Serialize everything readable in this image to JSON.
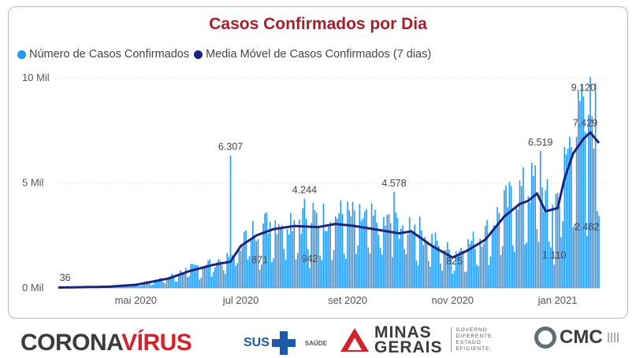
{
  "chart_data": {
    "type": "bar",
    "title": "Casos Confirmados por Dia",
    "series": [
      {
        "name": "Número de Casos Confirmados",
        "type": "bar",
        "color": "#2196f3"
      },
      {
        "name": "Media Móvel de Casos Confirmados (7 dias)",
        "type": "line",
        "color": "#1a237e"
      }
    ],
    "x_start": "2020-03-17",
    "x_end": "2021-01-25",
    "x_ticks": [
      {
        "date": "2020-05-01",
        "label": "mai 2020"
      },
      {
        "date": "2020-07-01",
        "label": "jul 2020"
      },
      {
        "date": "2020-09-01",
        "label": "set 2020"
      },
      {
        "date": "2020-11-01",
        "label": "nov 2020"
      },
      {
        "date": "2021-01-01",
        "label": "jan 2021"
      }
    ],
    "y_ticks": [
      {
        "value": 0,
        "label": "0 Mil"
      },
      {
        "value": 5000,
        "label": "5 Mil"
      },
      {
        "value": 10000,
        "label": "10 Mil"
      }
    ],
    "ylim": [
      0,
      10000
    ],
    "grid": true,
    "legend_position": "top-left",
    "moving_average_anchors": [
      {
        "date": "2020-03-17",
        "value": 20
      },
      {
        "date": "2020-04-15",
        "value": 60
      },
      {
        "date": "2020-05-01",
        "value": 150
      },
      {
        "date": "2020-05-20",
        "value": 450
      },
      {
        "date": "2020-06-01",
        "value": 800
      },
      {
        "date": "2020-06-15",
        "value": 1100
      },
      {
        "date": "2020-06-25",
        "value": 1250
      },
      {
        "date": "2020-07-01",
        "value": 2000
      },
      {
        "date": "2020-07-10",
        "value": 2500
      },
      {
        "date": "2020-07-20",
        "value": 2800
      },
      {
        "date": "2020-08-01",
        "value": 2950
      },
      {
        "date": "2020-08-15",
        "value": 2900
      },
      {
        "date": "2020-08-25",
        "value": 3050
      },
      {
        "date": "2020-09-05",
        "value": 2950
      },
      {
        "date": "2020-09-20",
        "value": 2750
      },
      {
        "date": "2020-10-01",
        "value": 2600
      },
      {
        "date": "2020-10-08",
        "value": 2700
      },
      {
        "date": "2020-10-20",
        "value": 2000
      },
      {
        "date": "2020-11-01",
        "value": 1450
      },
      {
        "date": "2020-11-10",
        "value": 1800
      },
      {
        "date": "2020-11-20",
        "value": 2300
      },
      {
        "date": "2020-12-01",
        "value": 3400
      },
      {
        "date": "2020-12-10",
        "value": 4000
      },
      {
        "date": "2020-12-15",
        "value": 4150
      },
      {
        "date": "2020-12-20",
        "value": 4500
      },
      {
        "date": "2020-12-25",
        "value": 3650
      },
      {
        "date": "2021-01-01",
        "value": 3800
      },
      {
        "date": "2021-01-05",
        "value": 5200
      },
      {
        "date": "2021-01-10",
        "value": 6400
      },
      {
        "date": "2021-01-16",
        "value": 7100
      },
      {
        "date": "2021-01-20",
        "value": 7400
      },
      {
        "date": "2021-01-25",
        "value": 6900
      }
    ],
    "annotations": [
      {
        "date": "2020-03-21",
        "value": 36,
        "label": "36"
      },
      {
        "date": "2020-06-25",
        "value": 6307,
        "label": "6.307"
      },
      {
        "date": "2020-07-12",
        "value": 871,
        "label": "871"
      },
      {
        "date": "2020-08-07",
        "value": 4244,
        "label": "4.244"
      },
      {
        "date": "2020-08-10",
        "value": 942,
        "label": "942"
      },
      {
        "date": "2020-09-28",
        "value": 4578,
        "label": "4.578"
      },
      {
        "date": "2020-11-02",
        "value": 825,
        "label": "825"
      },
      {
        "date": "2020-12-22",
        "value": 6519,
        "label": "6.519"
      },
      {
        "date": "2020-12-30",
        "value": 1110,
        "label": "1.110"
      },
      {
        "date": "2021-01-16",
        "value": 9120,
        "label": "9.120"
      },
      {
        "date": "2021-01-17",
        "value": 7429,
        "label": "7.429"
      },
      {
        "date": "2021-01-18",
        "value": 2482,
        "label": "2.482"
      }
    ]
  },
  "footer": {
    "corona_part1": "CORONA",
    "corona_part2": "VÍRUS",
    "sus_text": "SUS",
    "saude_text": "SAÚDE",
    "minas_line1": "MINAS",
    "minas_line2": "GERAIS",
    "governo_lines": [
      "GOVERNO",
      "DIFERENTE.",
      "ESTADO",
      "EFICIENTE."
    ],
    "cmc_text": "CMC"
  }
}
